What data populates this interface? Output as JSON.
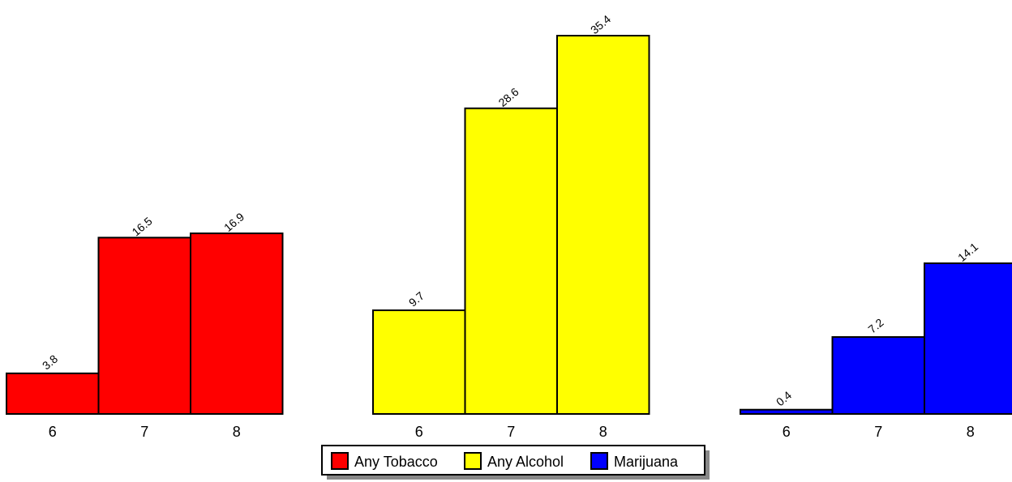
{
  "chart_data": {
    "type": "bar",
    "categories": [
      "6",
      "7",
      "8"
    ],
    "series": [
      {
        "name": "Any Tobacco",
        "color": "#ff0000",
        "values": [
          3.8,
          16.5,
          16.9
        ],
        "labels": [
          "3.8",
          "16.5",
          "16.9"
        ]
      },
      {
        "name": "Any Alcohol",
        "color": "#ffff00",
        "values": [
          9.7,
          28.6,
          35.4
        ],
        "labels": [
          "9.7",
          "28.6",
          "35.4"
        ]
      },
      {
        "name": "Marijuana",
        "color": "#0000ff",
        "values": [
          0.4,
          7.2,
          14.1
        ],
        "labels": [
          "0.4",
          "7.2",
          "14.1"
        ]
      }
    ],
    "ylim": [
      0,
      35.4
    ],
    "grid": false,
    "legend_position": "bottom-center"
  }
}
